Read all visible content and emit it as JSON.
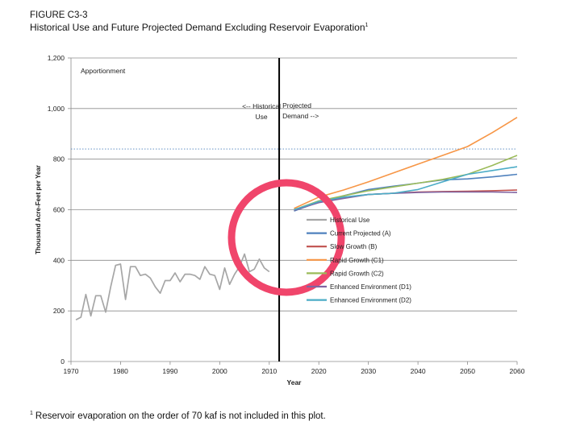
{
  "figure": {
    "label": "FIGURE C3-3",
    "title": "Historical Use and Future Projected Demand Excluding Reservoir Evaporation",
    "title_marker": "1",
    "footnote_marker": "1",
    "footnote": "Reservoir evaporation on the order of 70 kaf is not included in this plot."
  },
  "chart_data": {
    "type": "line",
    "xlabel": "Year",
    "ylabel": "Thousand Acre-Feet per Year",
    "xlim": [
      1970,
      2060
    ],
    "ylim": [
      0,
      1200
    ],
    "xticks": [
      1970,
      1980,
      1990,
      2000,
      2010,
      2020,
      2030,
      2040,
      2050,
      2060
    ],
    "yticks": [
      0,
      200,
      400,
      600,
      800,
      1000,
      1200
    ],
    "ytick_labels": [
      "0",
      "200",
      "400",
      "600",
      "800",
      "1,000",
      "1,200"
    ],
    "grid": "horizontal",
    "legend_position": "center-right",
    "annotations": {
      "apportionment": {
        "text": "Apportionment",
        "y": 840
      },
      "divider": {
        "x": 2012
      },
      "historical_label": [
        "<-- Historical",
        "Use"
      ],
      "projected_label": [
        "Projected",
        "Demand -->"
      ]
    },
    "series": [
      {
        "name": "Historical Use",
        "color": "#a6a6a6",
        "x": [
          1971,
          1972,
          1973,
          1974,
          1975,
          1976,
          1977,
          1978,
          1979,
          1980,
          1981,
          1982,
          1983,
          1984,
          1985,
          1986,
          1987,
          1988,
          1989,
          1990,
          1991,
          1992,
          1993,
          1994,
          1995,
          1996,
          1997,
          1998,
          1999,
          2000,
          2001,
          2002,
          2003,
          2004,
          2005,
          2006,
          2007,
          2008,
          2009,
          2010
        ],
        "y": [
          165,
          175,
          265,
          180,
          260,
          260,
          195,
          295,
          380,
          385,
          245,
          375,
          375,
          340,
          345,
          330,
          295,
          270,
          320,
          320,
          350,
          315,
          345,
          345,
          340,
          325,
          375,
          345,
          340,
          285,
          370,
          305,
          345,
          375,
          425,
          355,
          365,
          405,
          370,
          355
        ]
      },
      {
        "name": "Current Projected (A)",
        "color": "#4f81bd",
        "x": [
          2015,
          2020,
          2025,
          2030,
          2035,
          2040,
          2045,
          2050,
          2055,
          2060
        ],
        "y": [
          595,
          630,
          655,
          680,
          693,
          705,
          718,
          722,
          730,
          740
        ]
      },
      {
        "name": "Slow Growth (B)",
        "color": "#c0504d",
        "x": [
          2015,
          2020,
          2025,
          2030,
          2035,
          2040,
          2045,
          2050,
          2055,
          2060
        ],
        "y": [
          598,
          630,
          648,
          660,
          665,
          670,
          672,
          673,
          675,
          678
        ]
      },
      {
        "name": "Rapid Growth (C1)",
        "color": "#f79646",
        "x": [
          2015,
          2020,
          2025,
          2030,
          2035,
          2040,
          2045,
          2050,
          2055,
          2060
        ],
        "y": [
          605,
          650,
          678,
          710,
          745,
          780,
          815,
          850,
          905,
          965
        ]
      },
      {
        "name": "Rapid Growth (C2)",
        "color": "#9bbb59",
        "x": [
          2015,
          2020,
          2025,
          2030,
          2035,
          2040,
          2045,
          2050,
          2055,
          2060
        ],
        "y": [
          600,
          635,
          655,
          675,
          690,
          705,
          720,
          740,
          775,
          815
        ]
      },
      {
        "name": "Enhanced Environment (D1)",
        "color": "#8064a2",
        "x": [
          2015,
          2020,
          2025,
          2030,
          2035,
          2040,
          2045,
          2050,
          2055,
          2060
        ],
        "y": [
          598,
          628,
          645,
          660,
          665,
          668,
          670,
          670,
          670,
          668
        ]
      },
      {
        "name": "Enhanced Environment (D2)",
        "color": "#4bacc6",
        "x": [
          2015,
          2020,
          2025,
          2030,
          2035,
          2040,
          2045,
          2050,
          2055,
          2060
        ],
        "y": [
          600,
          632,
          650,
          660,
          665,
          680,
          710,
          740,
          755,
          770
        ]
      }
    ]
  },
  "overlay": {
    "shape": "circle",
    "color": "#f0456b"
  }
}
